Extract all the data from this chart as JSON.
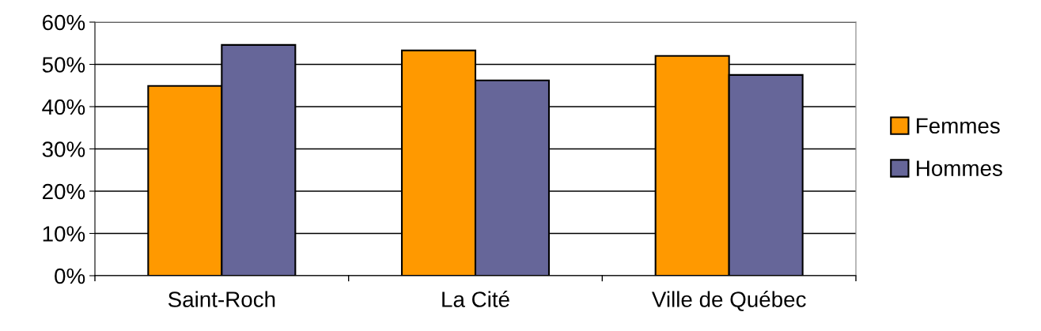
{
  "chart_data": {
    "type": "bar",
    "categories": [
      "Saint-Roch",
      "La Cité",
      "Ville de Québec"
    ],
    "series": [
      {
        "name": "Femmes",
        "color": "#ff9900",
        "values": [
          44.9,
          53.3,
          52.0
        ]
      },
      {
        "name": "Hommes",
        "color": "#666699",
        "values": [
          54.6,
          46.2,
          47.5
        ]
      }
    ],
    "ylim": [
      0,
      60
    ],
    "yticks": [
      {
        "value": 0,
        "label": "0%"
      },
      {
        "value": 10,
        "label": "10%"
      },
      {
        "value": 20,
        "label": "20%"
      },
      {
        "value": 30,
        "label": "30%"
      },
      {
        "value": 40,
        "label": "40%"
      },
      {
        "value": 50,
        "label": "50%"
      },
      {
        "value": 60,
        "label": "60%"
      }
    ],
    "grid": "y",
    "legend": "right"
  }
}
